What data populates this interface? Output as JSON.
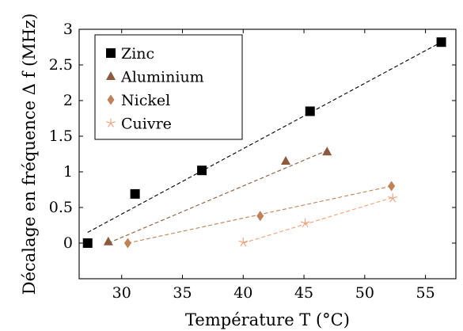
{
  "chart_data": {
    "type": "scatter",
    "xlabel": "Température T (°C)",
    "ylabel": "Décalage en fréquence Δ f (MHz)",
    "xlim": [
      26.5,
      57.5
    ],
    "ylim": [
      -0.5,
      3.0
    ],
    "x_ticks": [
      30,
      35,
      40,
      45,
      50,
      55
    ],
    "y_ticks": [
      0,
      0.5,
      1,
      1.5,
      2,
      2.5,
      3
    ],
    "x_tick_labels": [
      "30",
      "35",
      "40",
      "45",
      "50",
      "55"
    ],
    "y_tick_labels": [
      "0",
      "0.5",
      "1",
      "1.5",
      "2",
      "2.5",
      "3"
    ],
    "grid": false,
    "legend_position": "top-left",
    "series": [
      {
        "name": "Zinc",
        "marker": "square",
        "color": "#000000",
        "points": [
          [
            27.2,
            0.0
          ],
          [
            31.1,
            0.69
          ],
          [
            36.6,
            1.02
          ],
          [
            45.5,
            1.85
          ],
          [
            56.3,
            2.82
          ]
        ],
        "fit": [
          [
            27.2,
            0.15
          ],
          [
            56.3,
            2.82
          ]
        ]
      },
      {
        "name": "Aluminium",
        "marker": "triangle",
        "color": "#8c5a3c",
        "points": [
          [
            28.9,
            0.02
          ],
          [
            43.5,
            1.15
          ],
          [
            46.9,
            1.28
          ]
        ],
        "fit": [
          [
            28.9,
            0.0
          ],
          [
            46.9,
            1.3
          ]
        ]
      },
      {
        "name": "Nickel",
        "marker": "diamond",
        "color": "#bf8256",
        "points": [
          [
            30.5,
            0.0
          ],
          [
            41.4,
            0.38
          ],
          [
            52.2,
            0.8
          ]
        ],
        "fit": [
          [
            30.5,
            0.0
          ],
          [
            52.2,
            0.8
          ]
        ]
      },
      {
        "name": "Cuivre",
        "marker": "star",
        "color": "#f0a07a",
        "points": [
          [
            40.0,
            0.01
          ],
          [
            45.1,
            0.28
          ],
          [
            52.3,
            0.63
          ]
        ],
        "fit": [
          [
            40.0,
            0.0
          ],
          [
            52.3,
            0.64
          ]
        ]
      }
    ]
  }
}
